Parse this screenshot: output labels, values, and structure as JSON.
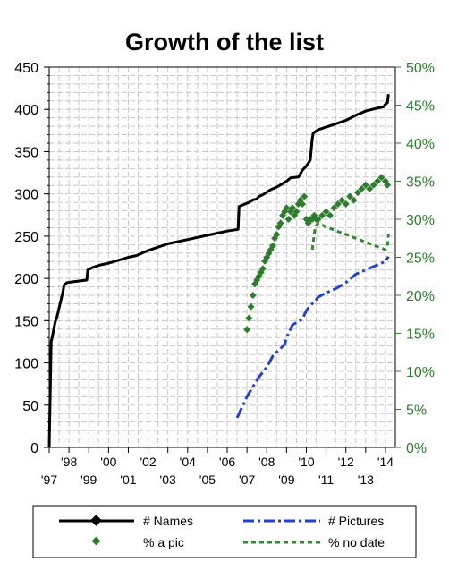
{
  "chart_data": {
    "type": "line",
    "title": "Growth of the list",
    "xlabel": "",
    "ylabel": "",
    "y2label": "",
    "xlim": [
      1997,
      2014.5
    ],
    "ylim": [
      0,
      450
    ],
    "y2lim": [
      0,
      0.5
    ],
    "grid": true,
    "legend_placement": "bottom",
    "x_ticks_upper": [
      "'98",
      "'00",
      "'02",
      "'04",
      "'06",
      "'08",
      "'10",
      "'12",
      "'14"
    ],
    "x_ticks_lower": [
      "'97",
      "'99",
      "'01",
      "'03",
      "'05",
      "'07",
      "'09",
      "'11",
      "'13"
    ],
    "y_ticks": [
      "0",
      "50",
      "100",
      "150",
      "200",
      "250",
      "300",
      "350",
      "400",
      "450"
    ],
    "y2_ticks": [
      "0%",
      "5%",
      "10%",
      "15%",
      "20%",
      "25%",
      "30%",
      "35%",
      "40%",
      "45%",
      "50%"
    ],
    "colors": {
      "names": "#000000",
      "pictures": "#1f3fe0",
      "pct_pic": "#2e7d2e",
      "pct_no_date": "#2e8b2e",
      "grid": "#c8c8c8",
      "right_axis": "#2e7d2e"
    },
    "series": [
      {
        "name": "# Names",
        "axis": "left",
        "style": "solid",
        "x": [
          1997.0,
          1997.1,
          1997.15,
          1997.3,
          1997.4,
          1997.6,
          1997.7,
          1997.75,
          1997.9,
          1998.2,
          1998.9,
          1998.95,
          1999.2,
          1999.6,
          2000.0,
          2000.3,
          2001.0,
          2001.4,
          2002.0,
          2002.5,
          2003.0,
          2004.0,
          2005.0,
          2006.0,
          2006.55,
          2006.6,
          2006.9,
          2007.1,
          2007.3,
          2007.5,
          2007.6,
          2007.8,
          2008.0,
          2008.2,
          2008.5,
          2008.8,
          2009.0,
          2009.2,
          2009.6,
          2009.8,
          2010.0,
          2010.2,
          2010.3,
          2010.35,
          2010.6,
          2011.0,
          2011.5,
          2012.0,
          2012.5,
          2013.0,
          2013.5,
          2013.9,
          2014.0,
          2014.1,
          2014.15
        ],
        "values": [
          0,
          125,
          130,
          148,
          155,
          175,
          185,
          192,
          195,
          196,
          198,
          210,
          213,
          216,
          218,
          220,
          225,
          227,
          233,
          237,
          241,
          246,
          251,
          256,
          258,
          285,
          288,
          290,
          293,
          294,
          297,
          299,
          302,
          305,
          308,
          312,
          315,
          319,
          320,
          328,
          333,
          340,
          365,
          372,
          376,
          379,
          383,
          387,
          393,
          398,
          401,
          403,
          406,
          408,
          418
        ]
      },
      {
        "name": "# Pictures",
        "axis": "left",
        "style": "dash-dot",
        "x": [
          2006.5,
          2006.8,
          2007.0,
          2007.3,
          2007.6,
          2008.0,
          2008.3,
          2008.6,
          2008.9,
          2009.0,
          2009.3,
          2009.6,
          2009.8,
          2010.0,
          2010.2,
          2010.4,
          2010.6,
          2011.0,
          2011.5,
          2012.0,
          2012.5,
          2013.0,
          2013.5,
          2014.0,
          2014.15
        ],
        "values": [
          35,
          50,
          60,
          72,
          83,
          95,
          108,
          115,
          122,
          130,
          145,
          149,
          152,
          162,
          168,
          172,
          178,
          183,
          188,
          195,
          205,
          210,
          215,
          220,
          226
        ]
      },
      {
        "name": "% a pic",
        "axis": "right",
        "style": "markers",
        "x": [
          2007.0,
          2007.1,
          2007.2,
          2007.3,
          2007.4,
          2007.5,
          2007.6,
          2007.7,
          2007.8,
          2007.9,
          2008.0,
          2008.1,
          2008.2,
          2008.3,
          2008.4,
          2008.5,
          2008.6,
          2008.7,
          2008.8,
          2008.9,
          2009.0,
          2009.1,
          2009.2,
          2009.3,
          2009.4,
          2009.5,
          2009.6,
          2009.7,
          2009.8,
          2009.9,
          2010.0,
          2010.1,
          2010.2,
          2010.3,
          2010.4,
          2010.5,
          2010.6,
          2010.8,
          2011.0,
          2011.2,
          2011.4,
          2011.6,
          2011.8,
          2012.0,
          2012.2,
          2012.4,
          2012.6,
          2012.8,
          2013.0,
          2013.2,
          2013.4,
          2013.6,
          2013.8,
          2014.0,
          2014.1
        ],
        "values": [
          0.155,
          0.17,
          0.185,
          0.2,
          0.215,
          0.22,
          0.225,
          0.23,
          0.235,
          0.245,
          0.25,
          0.255,
          0.26,
          0.265,
          0.275,
          0.28,
          0.29,
          0.295,
          0.305,
          0.31,
          0.315,
          0.3,
          0.31,
          0.315,
          0.305,
          0.31,
          0.32,
          0.325,
          0.32,
          0.33,
          0.3,
          0.295,
          0.3,
          0.3,
          0.305,
          0.3,
          0.3,
          0.305,
          0.31,
          0.305,
          0.315,
          0.32,
          0.325,
          0.32,
          0.33,
          0.325,
          0.335,
          0.34,
          0.345,
          0.34,
          0.345,
          0.35,
          0.355,
          0.35,
          0.345
        ]
      },
      {
        "name": "% no date",
        "axis": "right",
        "style": "dashed",
        "x": [
          2010.3,
          2010.45,
          2010.6,
          2011.0,
          2011.5,
          2012.0,
          2012.5,
          2013.0,
          2013.5,
          2014.0,
          2014.1,
          2014.15
        ],
        "values": [
          0.26,
          0.29,
          0.295,
          0.29,
          0.285,
          0.28,
          0.275,
          0.27,
          0.265,
          0.26,
          0.265,
          0.28
        ]
      }
    ]
  },
  "legend": {
    "names": "# Names",
    "pictures": "# Pictures",
    "pct_pic": "% a pic",
    "pct_no_date": "% no date"
  }
}
